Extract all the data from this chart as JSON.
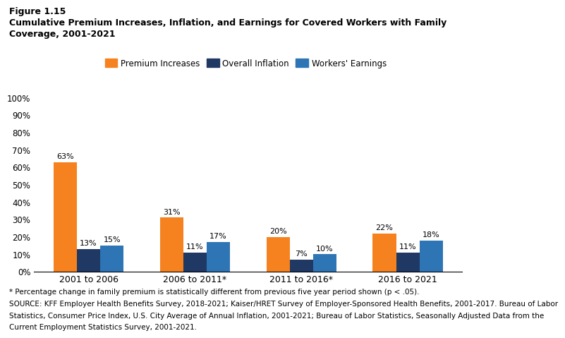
{
  "figure_label": "Figure 1.15",
  "title_line1": "Cumulative Premium Increases, Inflation, and Earnings for Covered Workers with Family",
  "title_line2": "Coverage, 2001-2021",
  "categories": [
    "2001 to 2006",
    "2006 to 2011*",
    "2011 to 2016*",
    "2016 to 2021"
  ],
  "series": {
    "Premium Increases": [
      63,
      31,
      20,
      22
    ],
    "Overall Inflation": [
      13,
      11,
      7,
      11
    ],
    "Workers' Earnings": [
      15,
      17,
      10,
      18
    ]
  },
  "colors": {
    "Premium Increases": "#F5821F",
    "Overall Inflation": "#1F3864",
    "Workers' Earnings": "#2E75B6"
  },
  "ylim": [
    0,
    100
  ],
  "yticks": [
    0,
    10,
    20,
    30,
    40,
    50,
    60,
    70,
    80,
    90,
    100
  ],
  "ytick_labels": [
    "0%",
    "10%",
    "20%",
    "30%",
    "40%",
    "50%",
    "60%",
    "70%",
    "80%",
    "90%",
    "100%"
  ],
  "bar_width": 0.22,
  "footnote_star": "* Percentage change in family premium is statistically different from previous five year period shown (p < .05).",
  "footnote_source1": "SOURCE: KFF Employer Health Benefits Survey, 2018-2021; Kaiser/HRET Survey of Employer-Sponsored Health Benefits, 2001-2017. Bureau of Labor",
  "footnote_source2": "Statistics, Consumer Price Index, U.S. City Average of Annual Inflation, 2001-2021; Bureau of Labor Statistics, Seasonally Adjusted Data from the",
  "footnote_source3": "Current Employment Statistics Survey, 2001-2021.",
  "legend_order": [
    "Premium Increases",
    "Overall Inflation",
    "Workers' Earnings"
  ],
  "value_labels": {
    "Premium Increases": [
      "63%",
      "31%",
      "20%",
      "22%"
    ],
    "Overall Inflation": [
      "13%",
      "11%",
      "7%",
      "11%"
    ],
    "Workers' Earnings": [
      "15%",
      "17%",
      "10%",
      "18%"
    ]
  }
}
